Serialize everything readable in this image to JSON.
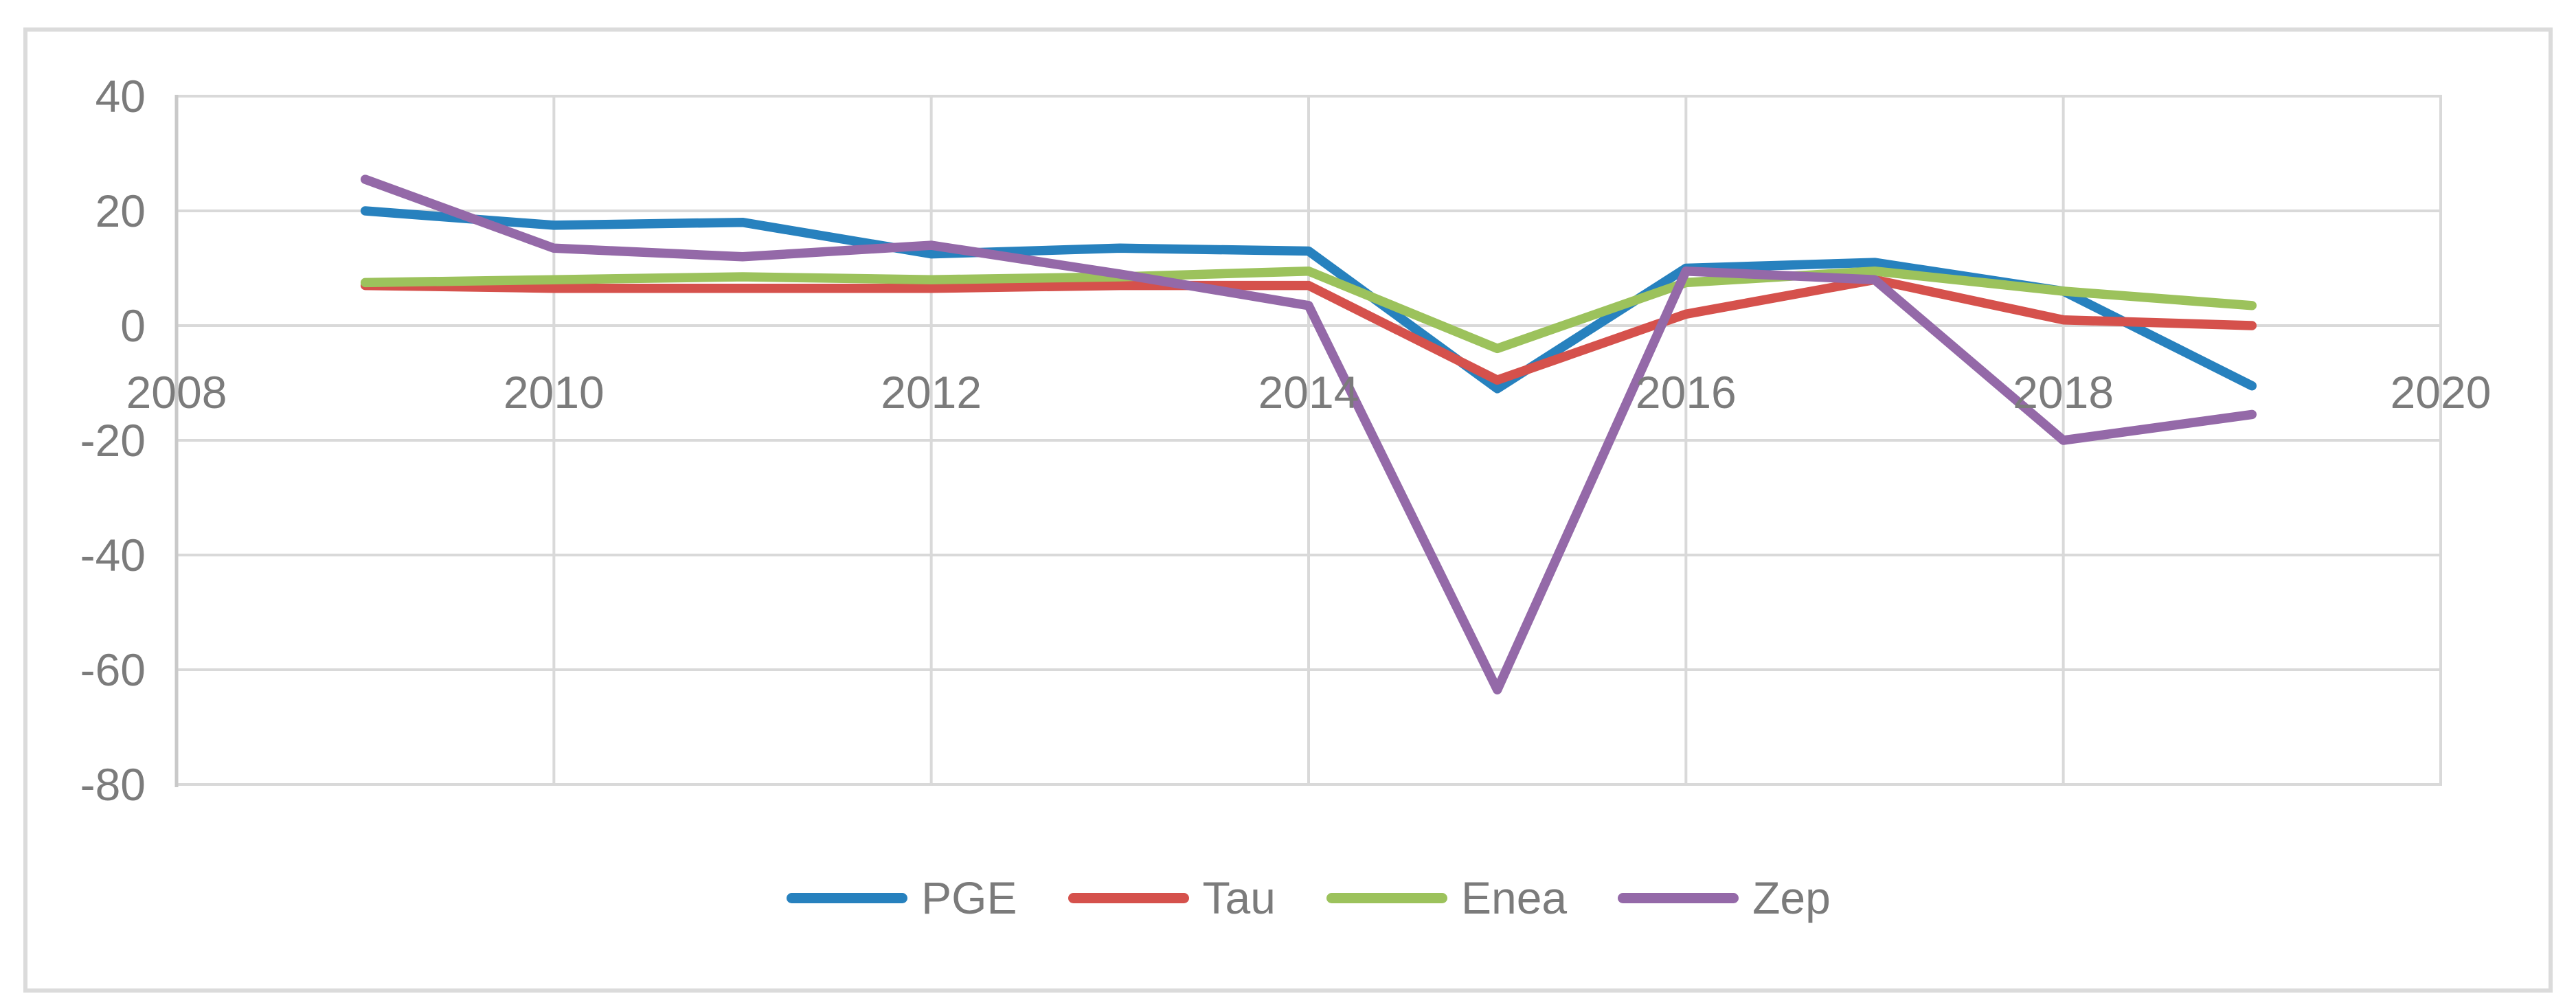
{
  "figure": {
    "background": "#ffffff",
    "border_color": "#dbdbdb"
  },
  "chart_data": {
    "type": "line",
    "title": "",
    "xlabel": "",
    "ylabel": "",
    "x": [
      2009,
      2010,
      2011,
      2012,
      2013,
      2014,
      2015,
      2016,
      2017,
      2018,
      2019
    ],
    "series": [
      {
        "name": "PGE",
        "color": "#2781be",
        "values": [
          20,
          17.5,
          18,
          12.5,
          13.5,
          13,
          -11,
          10,
          11,
          6,
          -10.5
        ]
      },
      {
        "name": "Tau",
        "color": "#d5514c",
        "values": [
          7,
          6.5,
          6.5,
          6.5,
          7,
          7,
          -9.5,
          2,
          8,
          1,
          0
        ]
      },
      {
        "name": "Enea",
        "color": "#9cc25c",
        "values": [
          7.5,
          8,
          8.5,
          8,
          8.5,
          9.5,
          -4,
          7.5,
          9.5,
          6,
          3.5
        ]
      },
      {
        "name": "Zep",
        "color": "#9469a8",
        "values": [
          25.5,
          13.5,
          12,
          14,
          9,
          3.5,
          -63.5,
          9.5,
          8,
          -20,
          -15.5
        ]
      }
    ],
    "xlim": [
      2008,
      2020
    ],
    "ylim": [
      -80,
      40
    ],
    "x_ticks": [
      2008,
      2010,
      2012,
      2014,
      2016,
      2018,
      2020
    ],
    "y_ticks": [
      40,
      20,
      0,
      -20,
      -40,
      -60,
      -80
    ],
    "grid": true,
    "legend_position": "bottom",
    "gridline_color": "#d9d9d9",
    "axis_line_color": "#c9c9c9",
    "tick_label_color": "#7b7b7b",
    "line_width": 13.5
  }
}
